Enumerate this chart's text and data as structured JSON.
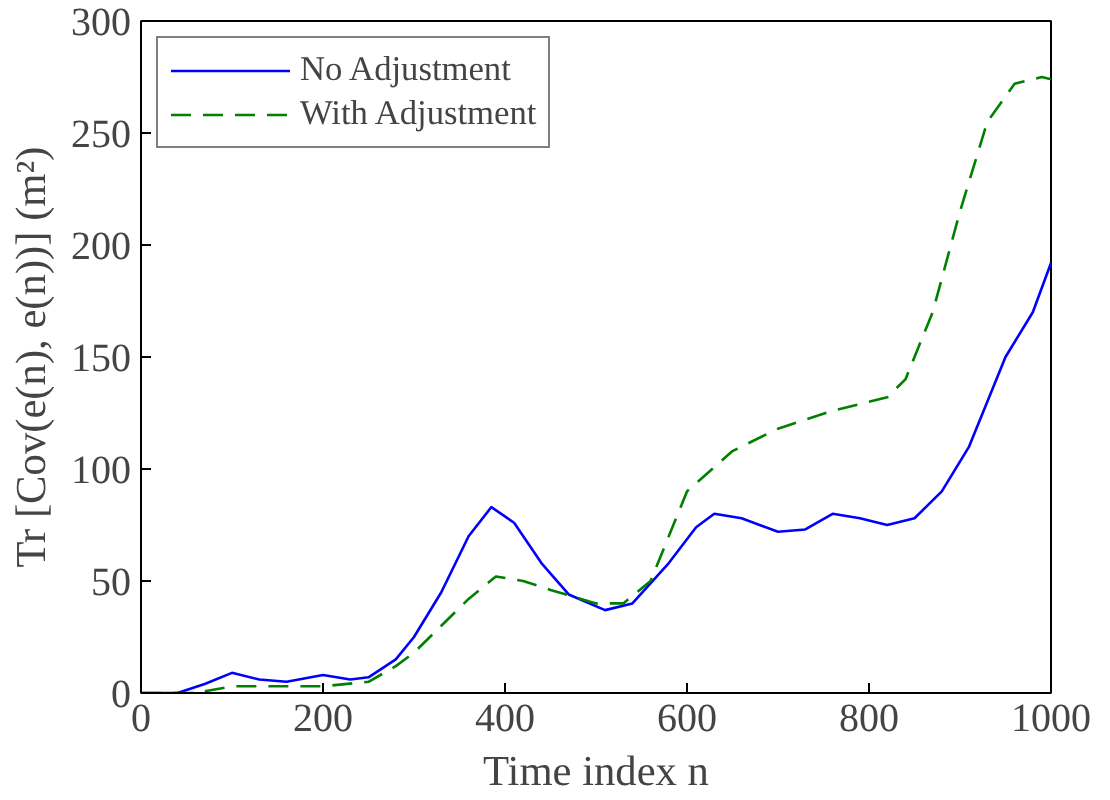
{
  "chart_data": {
    "type": "line",
    "xlabel": "Time index n",
    "ylabel": "Tr [Cov(e(n), e(n))] (m²)",
    "xlim": [
      0,
      1000
    ],
    "ylim": [
      0,
      300
    ],
    "xticks": [
      0,
      200,
      400,
      600,
      800,
      1000
    ],
    "yticks": [
      0,
      50,
      100,
      150,
      200,
      250,
      300
    ],
    "grid": false,
    "legend": "top left",
    "series": [
      {
        "name": "No Adjustment",
        "color": "#0000ff",
        "line_style": "solid",
        "x": [
          0,
          40,
          70,
          100,
          130,
          160,
          200,
          230,
          250,
          280,
          300,
          330,
          360,
          385,
          410,
          440,
          470,
          510,
          540,
          580,
          610,
          630,
          660,
          700,
          730,
          760,
          790,
          820,
          850,
          880,
          910,
          950,
          980,
          1000
        ],
        "values": [
          0,
          0,
          4,
          9,
          6,
          5,
          8,
          6,
          7,
          15,
          25,
          45,
          70,
          83,
          76,
          58,
          44,
          37,
          40,
          58,
          74,
          80,
          78,
          72,
          73,
          80,
          78,
          75,
          78,
          90,
          110,
          150,
          170,
          192
        ]
      },
      {
        "name": "With Adjustment",
        "color": "#008000",
        "line_style": "dashed",
        "x": [
          0,
          60,
          100,
          150,
          200,
          250,
          280,
          300,
          330,
          360,
          390,
          420,
          450,
          500,
          530,
          560,
          600,
          650,
          700,
          760,
          820,
          840,
          870,
          900,
          930,
          960,
          990,
          1000
        ],
        "values": [
          0,
          0,
          3,
          3,
          3,
          5,
          12,
          18,
          30,
          42,
          52,
          50,
          46,
          40,
          40,
          50,
          90,
          108,
          118,
          126,
          132,
          140,
          170,
          215,
          255,
          272,
          275,
          274
        ]
      }
    ]
  }
}
